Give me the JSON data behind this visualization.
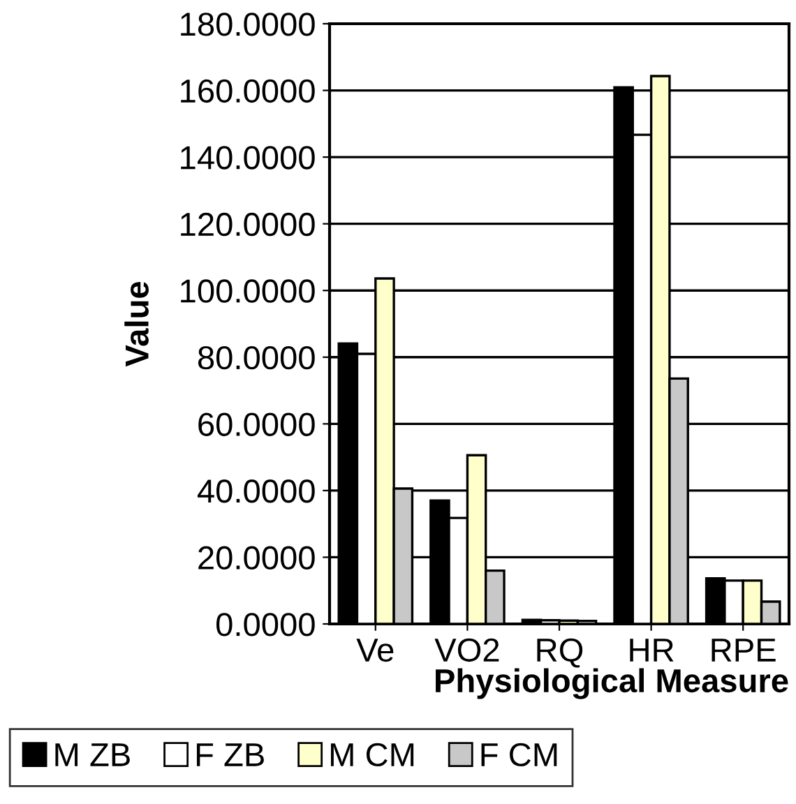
{
  "chart_data": {
    "type": "bar",
    "xlabel": "Physiological Measure",
    "ylabel": "Value",
    "categories": [
      "Ve",
      "VO2",
      "RQ",
      "HR",
      "RPE"
    ],
    "series": [
      {
        "name": "M ZB",
        "color": "#000000",
        "values": [
          84.1,
          37.0,
          1.2,
          160.9,
          13.7
        ]
      },
      {
        "name": "F ZB",
        "color": "#ffffff",
        "values": [
          81.0,
          31.8,
          1.1,
          146.7,
          13.0
        ]
      },
      {
        "name": "M CM",
        "color": "#ffffcc",
        "values": [
          103.6,
          50.6,
          1.0,
          164.3,
          13.0
        ]
      },
      {
        "name": "F CM",
        "color": "#c8c8c8",
        "values": [
          40.6,
          16.0,
          0.9,
          73.6,
          6.7
        ]
      }
    ],
    "ylim": [
      0,
      180
    ],
    "yticks": [
      {
        "value": 0,
        "label": "0.0000"
      },
      {
        "value": 20,
        "label": "20.0000"
      },
      {
        "value": 40,
        "label": "40.0000"
      },
      {
        "value": 60,
        "label": "60.0000"
      },
      {
        "value": 80,
        "label": "80.0000"
      },
      {
        "value": 100,
        "label": "100.0000"
      },
      {
        "value": 120,
        "label": "120.0000"
      },
      {
        "value": 140,
        "label": "140.0000"
      },
      {
        "value": 160,
        "label": "160.0000"
      },
      {
        "value": 180,
        "label": "180.0000"
      }
    ],
    "grid": "y",
    "legend": "bottom"
  }
}
